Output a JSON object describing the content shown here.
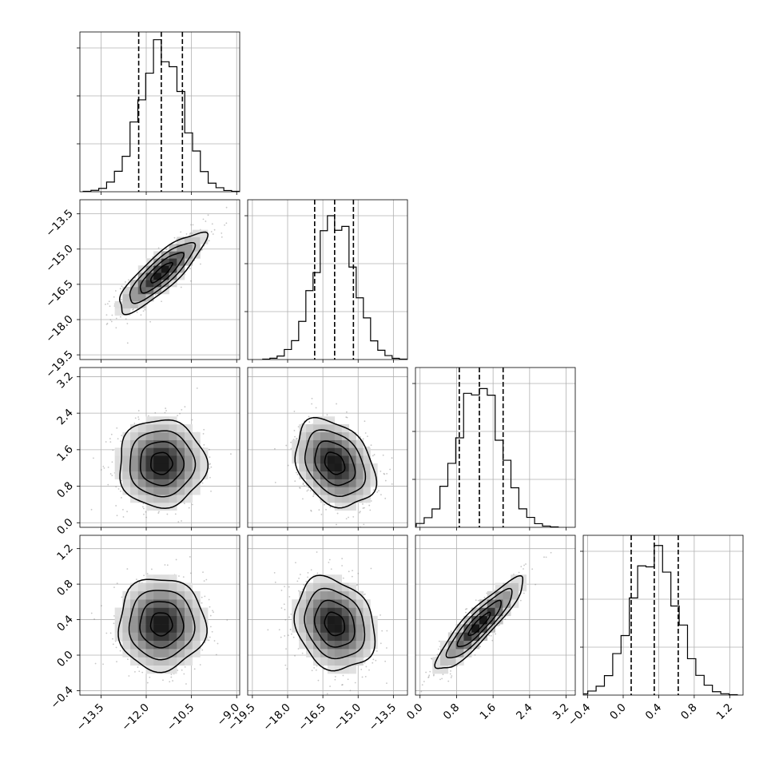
{
  "chart_data": {
    "type": "corner",
    "title": "",
    "params": [
      {
        "label": "",
        "ticks": [
          "−13.5",
          "−12.0",
          "−10.5",
          "−9.0"
        ],
        "tickvals": [
          -13.5,
          -12.0,
          -10.5,
          -9.0
        ],
        "range": [
          -14.2,
          -8.9
        ],
        "mean": -11.5,
        "sd": 0.72,
        "quantiles": [
          -12.25,
          -11.5,
          -10.8
        ]
      },
      {
        "label": "",
        "ticks": [
          "−19.5",
          "−18.0",
          "−16.5",
          "−15.0",
          "−13.5"
        ],
        "tickvals": [
          -19.5,
          -18.0,
          -16.5,
          -15.0,
          -13.5
        ],
        "range": [
          -19.7,
          -12.9
        ],
        "mean": -16.0,
        "sd": 0.85,
        "quantiles": [
          -16.85,
          -16.0,
          -15.2
        ]
      },
      {
        "label": "",
        "ticks": [
          "0.0",
          "0.8",
          "1.6",
          "2.4",
          "3.2"
        ],
        "tickvals": [
          0.0,
          0.8,
          1.6,
          2.4,
          3.2
        ],
        "range": [
          -0.1,
          3.4
        ],
        "mean": 1.3,
        "sd": 0.48,
        "quantiles": [
          0.86,
          1.3,
          1.82
        ]
      },
      {
        "label": "",
        "ticks": [
          "−0.4",
          "0.0",
          "0.4",
          "0.8",
          "1.2"
        ],
        "tickvals": [
          -0.4,
          0.0,
          0.4,
          0.8,
          1.2
        ],
        "range": [
          -0.45,
          1.35
        ],
        "mean": 0.35,
        "sd": 0.26,
        "quantiles": [
          0.09,
          0.35,
          0.62
        ]
      }
    ],
    "correlations": [
      [
        1.0,
        0.85,
        0.0,
        0.0
      ],
      [
        0.85,
        1.0,
        -0.3,
        -0.2
      ],
      [
        0.0,
        -0.3,
        1.0,
        0.9
      ],
      [
        0.0,
        -0.2,
        0.9,
        1.0
      ]
    ],
    "histogram": {
      "bins": 20,
      "style": "step",
      "quantile_lines": "dashed"
    },
    "grid": true,
    "colors": {
      "line": "#000000",
      "grid": "#b0b0b0",
      "points": "#808080"
    }
  }
}
